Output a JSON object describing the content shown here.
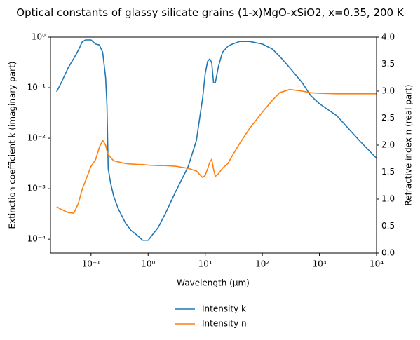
{
  "chart_data": {
    "type": "line",
    "title": "Optical constants of glassy silicate grains (1-x)MgO-xSiO2, x=0.35, 200 K",
    "x_label": "Wavelength (μm)",
    "y_label": "Extinction coefficient k (imaginary part)",
    "y2_label": "Refractive index n (real part)",
    "xscale": "log",
    "yscale": "log",
    "legend": "below",
    "x": [
      0.025,
      0.03,
      0.04,
      0.05,
      0.06,
      0.07,
      0.08,
      0.1,
      0.12,
      0.14,
      0.16,
      0.18,
      0.19,
      0.2,
      0.22,
      0.25,
      0.3,
      0.4,
      0.5,
      0.7,
      0.8,
      1,
      1.5,
      2,
      3,
      5,
      7,
      9,
      10,
      11,
      12,
      13,
      14,
      15,
      17,
      20,
      25,
      30,
      40,
      60,
      100,
      150,
      200,
      300,
      500,
      700,
      1000,
      2000,
      5000,
      10000
    ],
    "series": [
      {
        "name": "Intensity k",
        "color": "#1f77b4",
        "axis": "y",
        "values": [
          0.083,
          0.125,
          0.25,
          0.38,
          0.55,
          0.8,
          0.88,
          0.88,
          0.73,
          0.7,
          0.5,
          0.16,
          0.045,
          0.0025,
          0.0013,
          0.0007,
          0.0004,
          0.00021,
          0.00015,
          0.00011,
          9.5e-05,
          9.5e-05,
          0.00017,
          0.00032,
          0.00085,
          0.0027,
          0.009,
          0.062,
          0.19,
          0.33,
          0.37,
          0.31,
          0.125,
          0.125,
          0.26,
          0.5,
          0.66,
          0.73,
          0.82,
          0.82,
          0.73,
          0.58,
          0.42,
          0.25,
          0.125,
          0.07,
          0.048,
          0.028,
          0.009,
          0.004
        ]
      },
      {
        "name": "Intensity n",
        "color": "#ff7f0e",
        "axis": "y2",
        "values": [
          0.86,
          0.81,
          0.75,
          0.74,
          0.92,
          1.18,
          1.34,
          1.61,
          1.73,
          1.96,
          2.09,
          2.0,
          1.9,
          1.83,
          1.77,
          1.71,
          1.69,
          1.66,
          1.65,
          1.64,
          1.64,
          1.63,
          1.62,
          1.62,
          1.61,
          1.57,
          1.52,
          1.4,
          1.44,
          1.56,
          1.68,
          1.74,
          1.55,
          1.42,
          1.47,
          1.57,
          1.66,
          1.81,
          2.03,
          2.31,
          2.61,
          2.83,
          2.97,
          3.03,
          3.0,
          2.97,
          2.96,
          2.95,
          2.95,
          2.95
        ]
      }
    ],
    "xlim": [
      0.0195,
      10000
    ],
    "xticks": [
      {
        "value": 0.1,
        "label": "10⁻¹"
      },
      {
        "value": 1,
        "label": "10⁰"
      },
      {
        "value": 10,
        "label": "10¹"
      },
      {
        "value": 100,
        "label": "10²"
      },
      {
        "value": 1000,
        "label": "10³"
      },
      {
        "value": 10000,
        "label": "10⁴"
      }
    ],
    "ylim": [
      5.3e-05,
      1
    ],
    "yticks": [
      {
        "value": 0.0001,
        "label": "10⁻⁴"
      },
      {
        "value": 0.001,
        "label": "10⁻³"
      },
      {
        "value": 0.01,
        "label": "10⁻²"
      },
      {
        "value": 0.1,
        "label": "10⁻¹"
      },
      {
        "value": 1,
        "label": "10⁰"
      }
    ],
    "y2lim": [
      0,
      4
    ],
    "y2ticks": [
      {
        "value": 0,
        "label": "0.0"
      },
      0.5,
      {
        "value": 1,
        "label": "1.0"
      },
      1.5,
      {
        "value": 2,
        "label": "2.0"
      },
      2.5,
      {
        "value": 3,
        "label": "3.0"
      },
      3.5,
      {
        "value": 4,
        "label": "4.0"
      }
    ]
  }
}
